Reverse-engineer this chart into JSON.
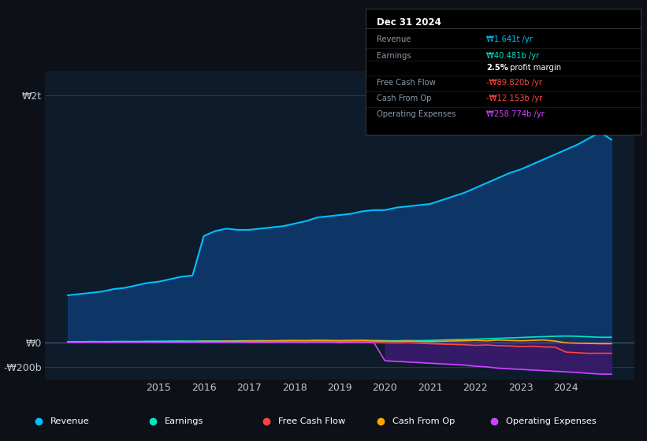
{
  "bg_color": "#0d1117",
  "plot_bg_color": "#0d1b2a",
  "grid_color": "#1e3a5a",
  "text_color": "#c0c8d0",
  "title_color": "#ffffff",
  "years": [
    2013,
    2013.25,
    2013.5,
    2013.75,
    2014,
    2014.25,
    2014.5,
    2014.75,
    2015,
    2015.25,
    2015.5,
    2015.75,
    2016,
    2016.25,
    2016.5,
    2016.75,
    2017,
    2017.25,
    2017.5,
    2017.75,
    2018,
    2018.25,
    2018.5,
    2018.75,
    2019,
    2019.25,
    2019.5,
    2019.75,
    2020,
    2020.25,
    2020.5,
    2020.75,
    2021,
    2021.25,
    2021.5,
    2021.75,
    2022,
    2022.25,
    2022.5,
    2022.75,
    2023,
    2023.25,
    2023.5,
    2023.75,
    2024,
    2024.25,
    2024.5,
    2024.75,
    2025
  ],
  "revenue": [
    380,
    390,
    400,
    410,
    430,
    440,
    460,
    480,
    490,
    510,
    530,
    540,
    860,
    900,
    920,
    910,
    910,
    920,
    930,
    940,
    960,
    980,
    1010,
    1020,
    1030,
    1040,
    1060,
    1070,
    1070,
    1090,
    1100,
    1110,
    1120,
    1150,
    1180,
    1210,
    1250,
    1290,
    1330,
    1370,
    1400,
    1440,
    1480,
    1520,
    1560,
    1600,
    1650,
    1700,
    1641
  ],
  "earnings": [
    5,
    4,
    6,
    5,
    6,
    7,
    6,
    8,
    8,
    9,
    10,
    9,
    10,
    11,
    10,
    12,
    12,
    13,
    12,
    14,
    15,
    14,
    16,
    15,
    14,
    15,
    16,
    14,
    13,
    12,
    14,
    13,
    15,
    18,
    20,
    22,
    25,
    28,
    32,
    35,
    38,
    42,
    45,
    48,
    50,
    48,
    44,
    40,
    40.481
  ],
  "free_cash_flow": [
    2,
    1,
    3,
    2,
    3,
    2,
    4,
    3,
    4,
    3,
    5,
    4,
    5,
    4,
    6,
    5,
    -2,
    -1,
    1,
    0,
    2,
    -1,
    3,
    2,
    -5,
    -3,
    -2,
    -4,
    -5,
    -6,
    -4,
    -8,
    -12,
    -15,
    -18,
    -20,
    -25,
    -22,
    -28,
    -30,
    -35,
    -32,
    -38,
    -40,
    -80,
    -85,
    -90,
    -89,
    -89.82
  ],
  "cash_from_op": [
    3,
    4,
    2,
    3,
    4,
    3,
    5,
    4,
    5,
    4,
    6,
    5,
    8,
    7,
    9,
    8,
    10,
    9,
    11,
    10,
    12,
    11,
    13,
    12,
    10,
    11,
    12,
    10,
    8,
    7,
    9,
    6,
    5,
    8,
    10,
    12,
    15,
    12,
    18,
    15,
    12,
    15,
    18,
    10,
    -5,
    -8,
    -10,
    -12,
    -12.153
  ],
  "operating_expenses": [
    0,
    0,
    0,
    0,
    0,
    0,
    0,
    0,
    0,
    0,
    0,
    0,
    0,
    0,
    0,
    0,
    0,
    0,
    0,
    0,
    0,
    0,
    0,
    0,
    0,
    0,
    0,
    0,
    -150,
    -155,
    -160,
    -165,
    -170,
    -175,
    -180,
    -185,
    -195,
    -200,
    -210,
    -215,
    -220,
    -225,
    -230,
    -235,
    -240,
    -245,
    -252,
    -258,
    -258.774
  ],
  "revenue_color": "#00bfff",
  "earnings_color": "#00e5c8",
  "free_cash_flow_color": "#ff4444",
  "cash_from_op_color": "#ffa500",
  "operating_expenses_color": "#cc44ff",
  "revenue_fill_color": "#0d3a6e",
  "operating_expenses_fill_color": "#3a1a6e",
  "ytick_labels": [
    "₩2t",
    "₩0",
    "-₩200b"
  ],
  "ytick_values": [
    2000,
    0,
    -200
  ],
  "xtick_labels": [
    "2015",
    "2016",
    "2017",
    "2018",
    "2019",
    "2020",
    "2021",
    "2022",
    "2023",
    "2024"
  ],
  "xtick_values": [
    2015,
    2016,
    2017,
    2018,
    2019,
    2020,
    2021,
    2022,
    2023,
    2024
  ],
  "legend_items": [
    "Revenue",
    "Earnings",
    "Free Cash Flow",
    "Cash From Op",
    "Operating Expenses"
  ],
  "legend_colors": [
    "#00bfff",
    "#00e5c8",
    "#ff4444",
    "#ffa500",
    "#cc44ff"
  ],
  "tooltip_bg": "#000000",
  "tooltip_title": "Dec 31 2024",
  "tooltip_rows": [
    {
      "label": "Revenue",
      "value": "₩1.641t /yr",
      "value_color": "#00bfff"
    },
    {
      "label": "Earnings",
      "value": "₩40.481b /yr",
      "value_color": "#00e5c8"
    },
    {
      "label": "",
      "value": "2.5% profit margin",
      "value_color": "#ffffff"
    },
    {
      "label": "Free Cash Flow",
      "value": "-₩89.820b /yr",
      "value_color": "#ff4444"
    },
    {
      "label": "Cash From Op",
      "value": "-₩12.153b /yr",
      "value_color": "#ff4444"
    },
    {
      "label": "Operating Expenses",
      "value": "₩258.774b /yr",
      "value_color": "#cc44ff"
    }
  ],
  "ylim": [
    -300,
    2200
  ],
  "xlim": [
    2012.5,
    2025.5
  ]
}
